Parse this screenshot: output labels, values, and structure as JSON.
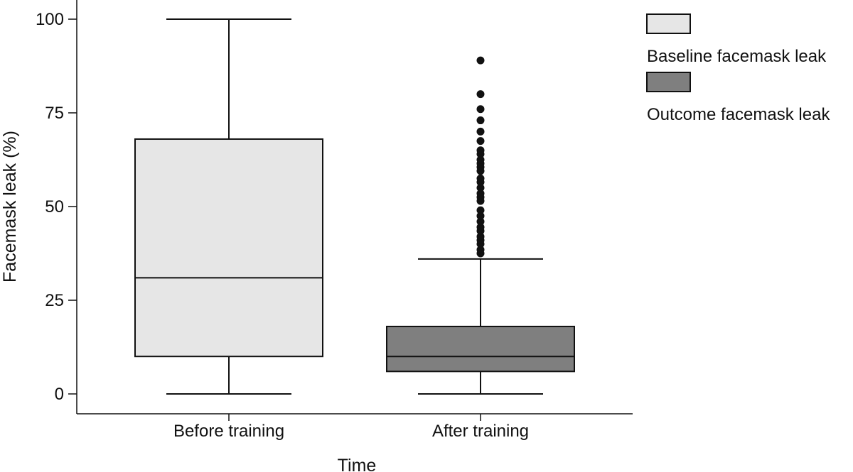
{
  "chart_data": {
    "type": "box",
    "xlabel": "Time",
    "ylabel": "Facemask leak (%)",
    "ylim": [
      0,
      100
    ],
    "yticks": [
      0,
      25,
      50,
      75,
      100
    ],
    "categories": [
      "Before training",
      "After training"
    ],
    "series": [
      {
        "name": "Baseline facemask leak",
        "category": "Before training",
        "color": "#e6e6e6",
        "min": 0,
        "q1": 10,
        "median": 31,
        "q3": 68,
        "max": 100,
        "outliers": []
      },
      {
        "name": "Outcome facemask leak",
        "category": "After training",
        "color": "#7f7f7f",
        "min": 0,
        "q1": 6,
        "median": 10,
        "q3": 18,
        "max": 36,
        "outliers": [
          37.5,
          38.5,
          40,
          41,
          42,
          43.5,
          44.5,
          46,
          47.5,
          49,
          51.5,
          52.5,
          53.5,
          55,
          56.5,
          57.5,
          59.5,
          60.5,
          61.5,
          62.5,
          64,
          65,
          67.5,
          70,
          73,
          76,
          80,
          89
        ]
      }
    ],
    "legend": {
      "position": "top-right"
    }
  }
}
